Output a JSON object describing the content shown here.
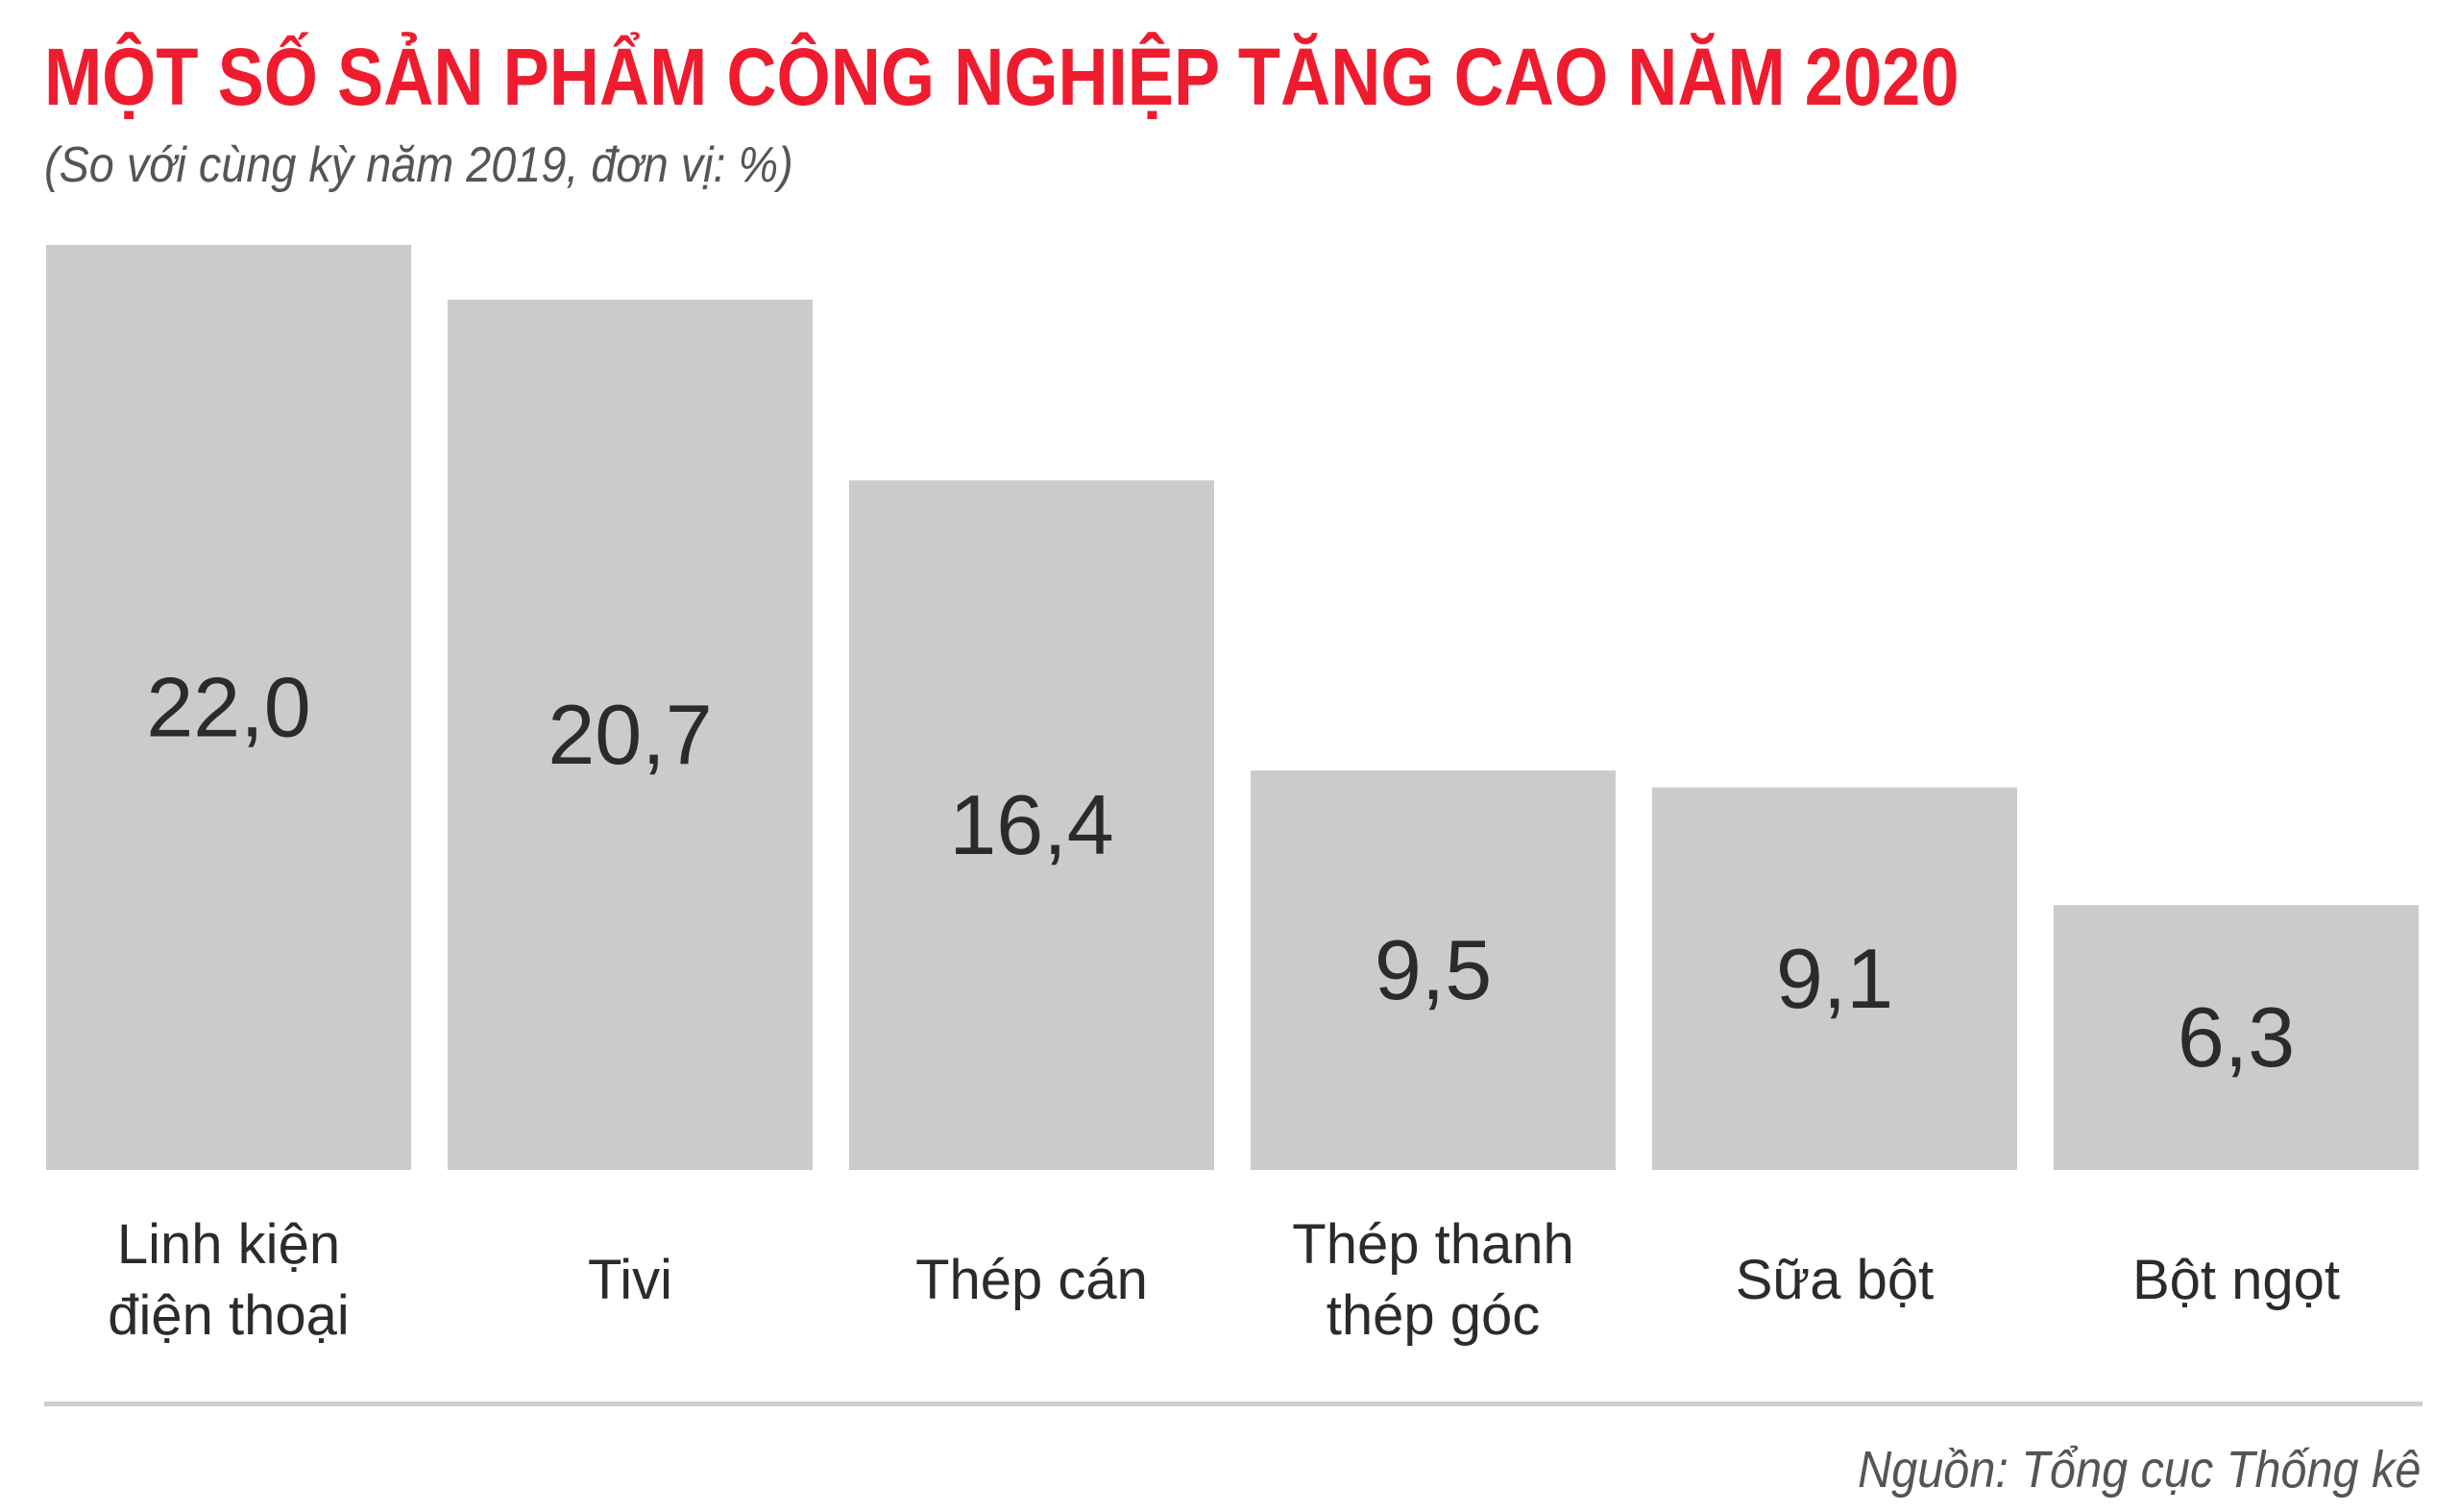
{
  "title": "MỘT SỐ SẢN PHẨM CÔNG NGHIỆP TĂNG CAO NĂM 2020",
  "subtitle": "(So với cùng kỳ năm 2019, đơn vị: %)",
  "source": "Nguồn: Tổng cục Thống kê",
  "colors": {
    "title": "#ee1c2e",
    "bar": "#cccacb",
    "text": "#2b2b2b"
  },
  "chart_data": {
    "type": "bar",
    "categories": [
      [
        "Linh kiện",
        "điện thoại"
      ],
      [
        "Tivi"
      ],
      [
        "Thép cán"
      ],
      [
        "Thép thanh",
        "thép góc"
      ],
      [
        "Sữa bột"
      ],
      [
        "Bột ngọt"
      ]
    ],
    "values": [
      22.0,
      20.7,
      16.4,
      9.5,
      9.1,
      6.3
    ],
    "value_labels": [
      "22,0",
      "20,7",
      "16,4",
      "9,5",
      "9,1",
      "6,3"
    ],
    "ylim": [
      0,
      22.0
    ],
    "grid": false,
    "legend": "none"
  }
}
